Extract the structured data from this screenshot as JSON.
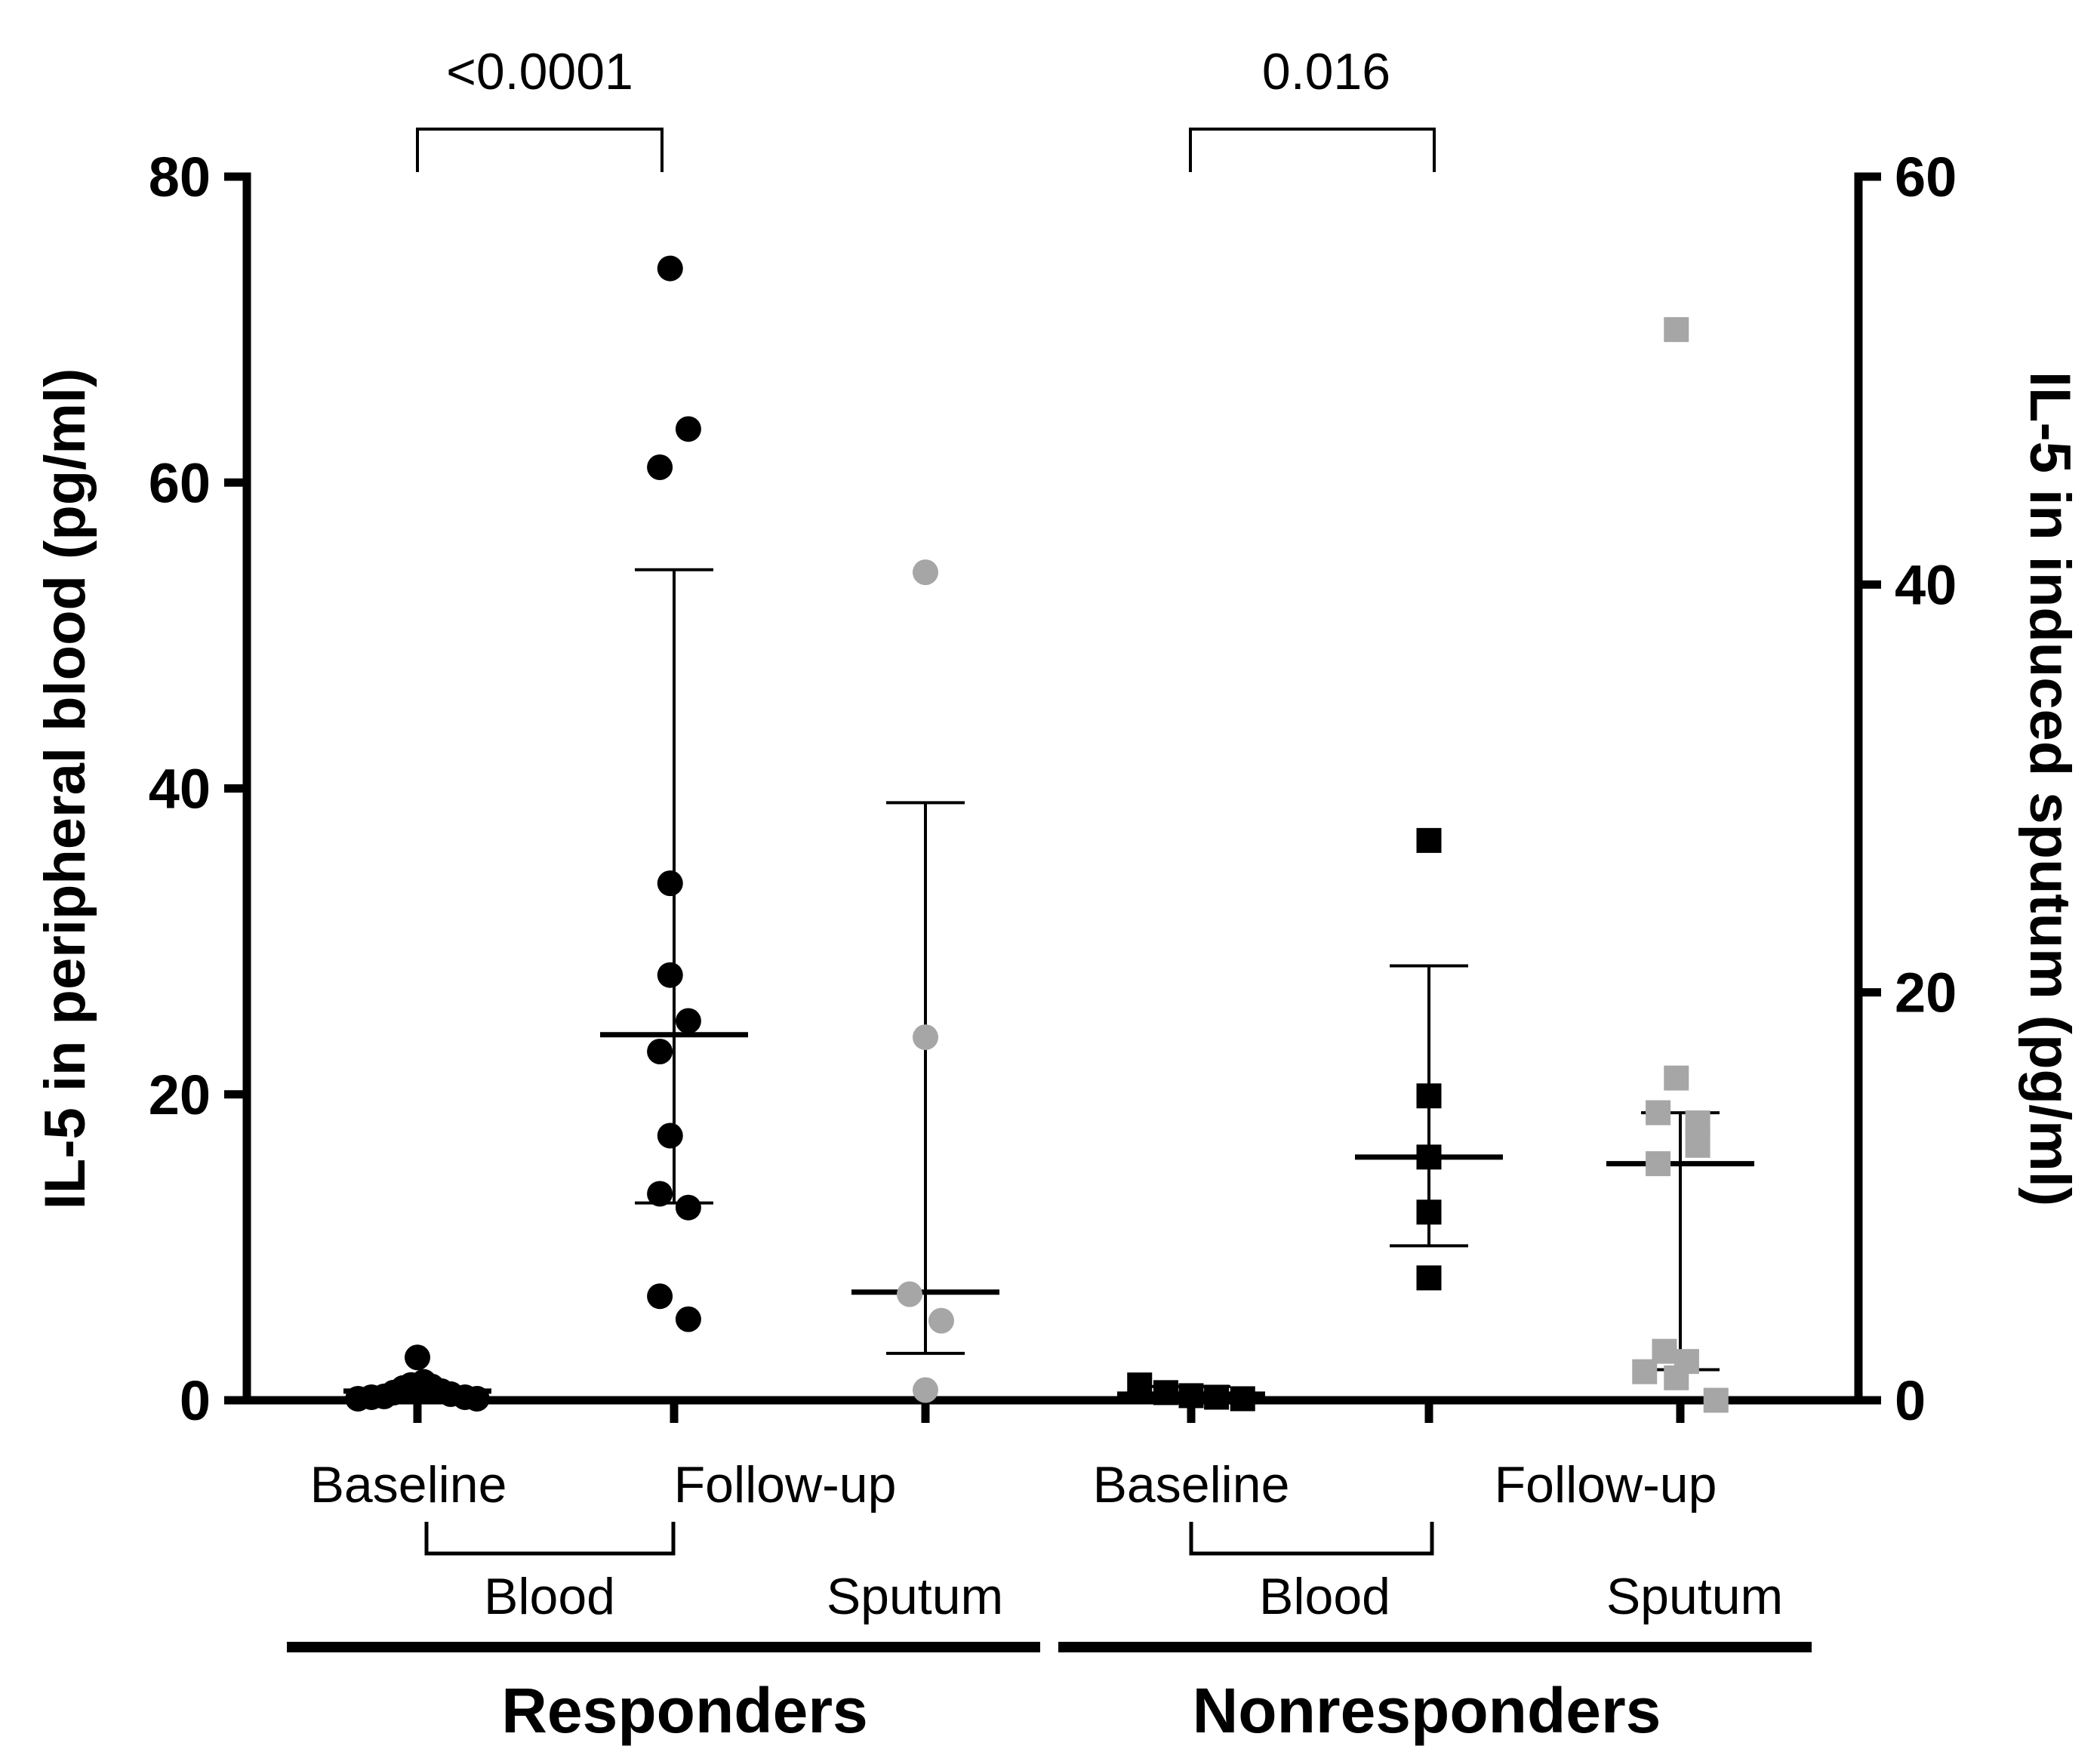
{
  "chart_data": {
    "type": "scatter",
    "left_axis": {
      "title": "IL-5 in peripheral blood (pg/ml)",
      "min": 0,
      "max": 80,
      "ticks": [
        0,
        20,
        40,
        60,
        80
      ]
    },
    "right_axis": {
      "title": "IL-5 in induced sputum (pg/ml)",
      "min": 0,
      "max": 60,
      "ticks": [
        0,
        20,
        40,
        60
      ]
    },
    "groups": [
      {
        "name": "Responders",
        "subgroups": [
          {
            "label": "Blood",
            "categories": [
              "Baseline",
              "Follow-up"
            ]
          },
          {
            "label": "Sputum",
            "categories": []
          }
        ]
      },
      {
        "name": "Nonresponders",
        "subgroups": [
          {
            "label": "Blood",
            "categories": [
              "Baseline",
              "Follow-up"
            ]
          },
          {
            "label": "Sputum",
            "categories": []
          }
        ]
      }
    ],
    "comparisons": [
      {
        "label": "<0.0001",
        "from": "resp_base",
        "to": "resp_follow"
      },
      {
        "label": "0.016",
        "from": "nonresp_base",
        "to": "nonresp_follow"
      }
    ],
    "series": [
      {
        "id": "resp_base",
        "group": "Responders",
        "specimen": "Blood",
        "timepoint": "Baseline",
        "axis": "left",
        "marker": "circle",
        "color": "#000000",
        "points": [
          [
            -0.75,
            0.1
          ],
          [
            -0.58,
            0.2
          ],
          [
            -0.42,
            0.25
          ],
          [
            -0.3,
            0.5
          ],
          [
            -0.18,
            0.8
          ],
          [
            -0.08,
            1.0
          ],
          [
            0.0,
            2.8
          ],
          [
            0.08,
            1.2
          ],
          [
            0.18,
            0.9
          ],
          [
            0.3,
            0.6
          ],
          [
            0.42,
            0.4
          ],
          [
            0.6,
            0.2
          ],
          [
            0.75,
            0.1
          ]
        ],
        "mean": 0.6,
        "err_low": 0.3,
        "err_high": 0.9
      },
      {
        "id": "resp_follow",
        "group": "Responders",
        "specimen": "Blood",
        "timepoint": "Follow-up",
        "axis": "left",
        "marker": "circle",
        "color": "#000000",
        "points": [
          [
            -0.05,
            74.0
          ],
          [
            -0.18,
            61.0
          ],
          [
            0.18,
            63.5
          ],
          [
            -0.05,
            33.8
          ],
          [
            -0.05,
            27.8
          ],
          [
            0.18,
            24.8
          ],
          [
            -0.18,
            22.8
          ],
          [
            -0.05,
            17.3
          ],
          [
            -0.18,
            13.5
          ],
          [
            0.18,
            12.6
          ],
          [
            -0.18,
            6.8
          ],
          [
            0.18,
            5.3
          ]
        ],
        "mean": 23.9,
        "err_low": 12.9,
        "err_high": 54.3
      },
      {
        "id": "resp_sputum",
        "group": "Responders",
        "specimen": "Sputum",
        "timepoint": "",
        "axis": "right",
        "marker": "circle",
        "color": "#a6a6a6",
        "points": [
          [
            0.0,
            40.6
          ],
          [
            0.0,
            17.8
          ],
          [
            -0.2,
            5.2
          ],
          [
            0.2,
            3.9
          ],
          [
            0.0,
            0.5
          ]
        ],
        "mean": 5.3,
        "err_low": 2.3,
        "err_high": 29.3
      },
      {
        "id": "nonresp_base",
        "group": "Nonresponders",
        "specimen": "Blood",
        "timepoint": "Baseline",
        "axis": "left",
        "marker": "square",
        "color": "#000000",
        "points": [
          [
            -0.65,
            1.0
          ],
          [
            -0.32,
            0.5
          ],
          [
            0.0,
            0.3
          ],
          [
            0.32,
            0.2
          ],
          [
            0.65,
            0.1
          ]
        ],
        "mean": 0.4,
        "err_low": 0.1,
        "err_high": 0.9
      },
      {
        "id": "nonresp_follow",
        "group": "Nonresponders",
        "specimen": "Blood",
        "timepoint": "Follow-up",
        "axis": "left",
        "marker": "square",
        "color": "#000000",
        "points": [
          [
            0.0,
            36.6
          ],
          [
            0.0,
            19.9
          ],
          [
            0.0,
            15.9
          ],
          [
            0.0,
            12.3
          ],
          [
            0.0,
            8.0
          ]
        ],
        "mean": 15.9,
        "err_low": 10.1,
        "err_high": 28.4
      },
      {
        "id": "nonresp_sputum",
        "group": "Nonresponders",
        "specimen": "Sputum",
        "timepoint": "",
        "axis": "right",
        "marker": "square",
        "color": "#a6a6a6",
        "points": [
          [
            -0.05,
            52.5
          ],
          [
            -0.05,
            15.8
          ],
          [
            -0.28,
            14.1
          ],
          [
            0.22,
            13.6
          ],
          [
            0.22,
            12.5
          ],
          [
            -0.28,
            11.6
          ],
          [
            -0.2,
            2.4
          ],
          [
            0.08,
            1.9
          ],
          [
            -0.45,
            1.4
          ],
          [
            -0.05,
            1.1
          ],
          [
            0.45,
            0.0
          ]
        ],
        "mean": 11.6,
        "err_low": 1.5,
        "err_high": 14.1
      }
    ]
  }
}
